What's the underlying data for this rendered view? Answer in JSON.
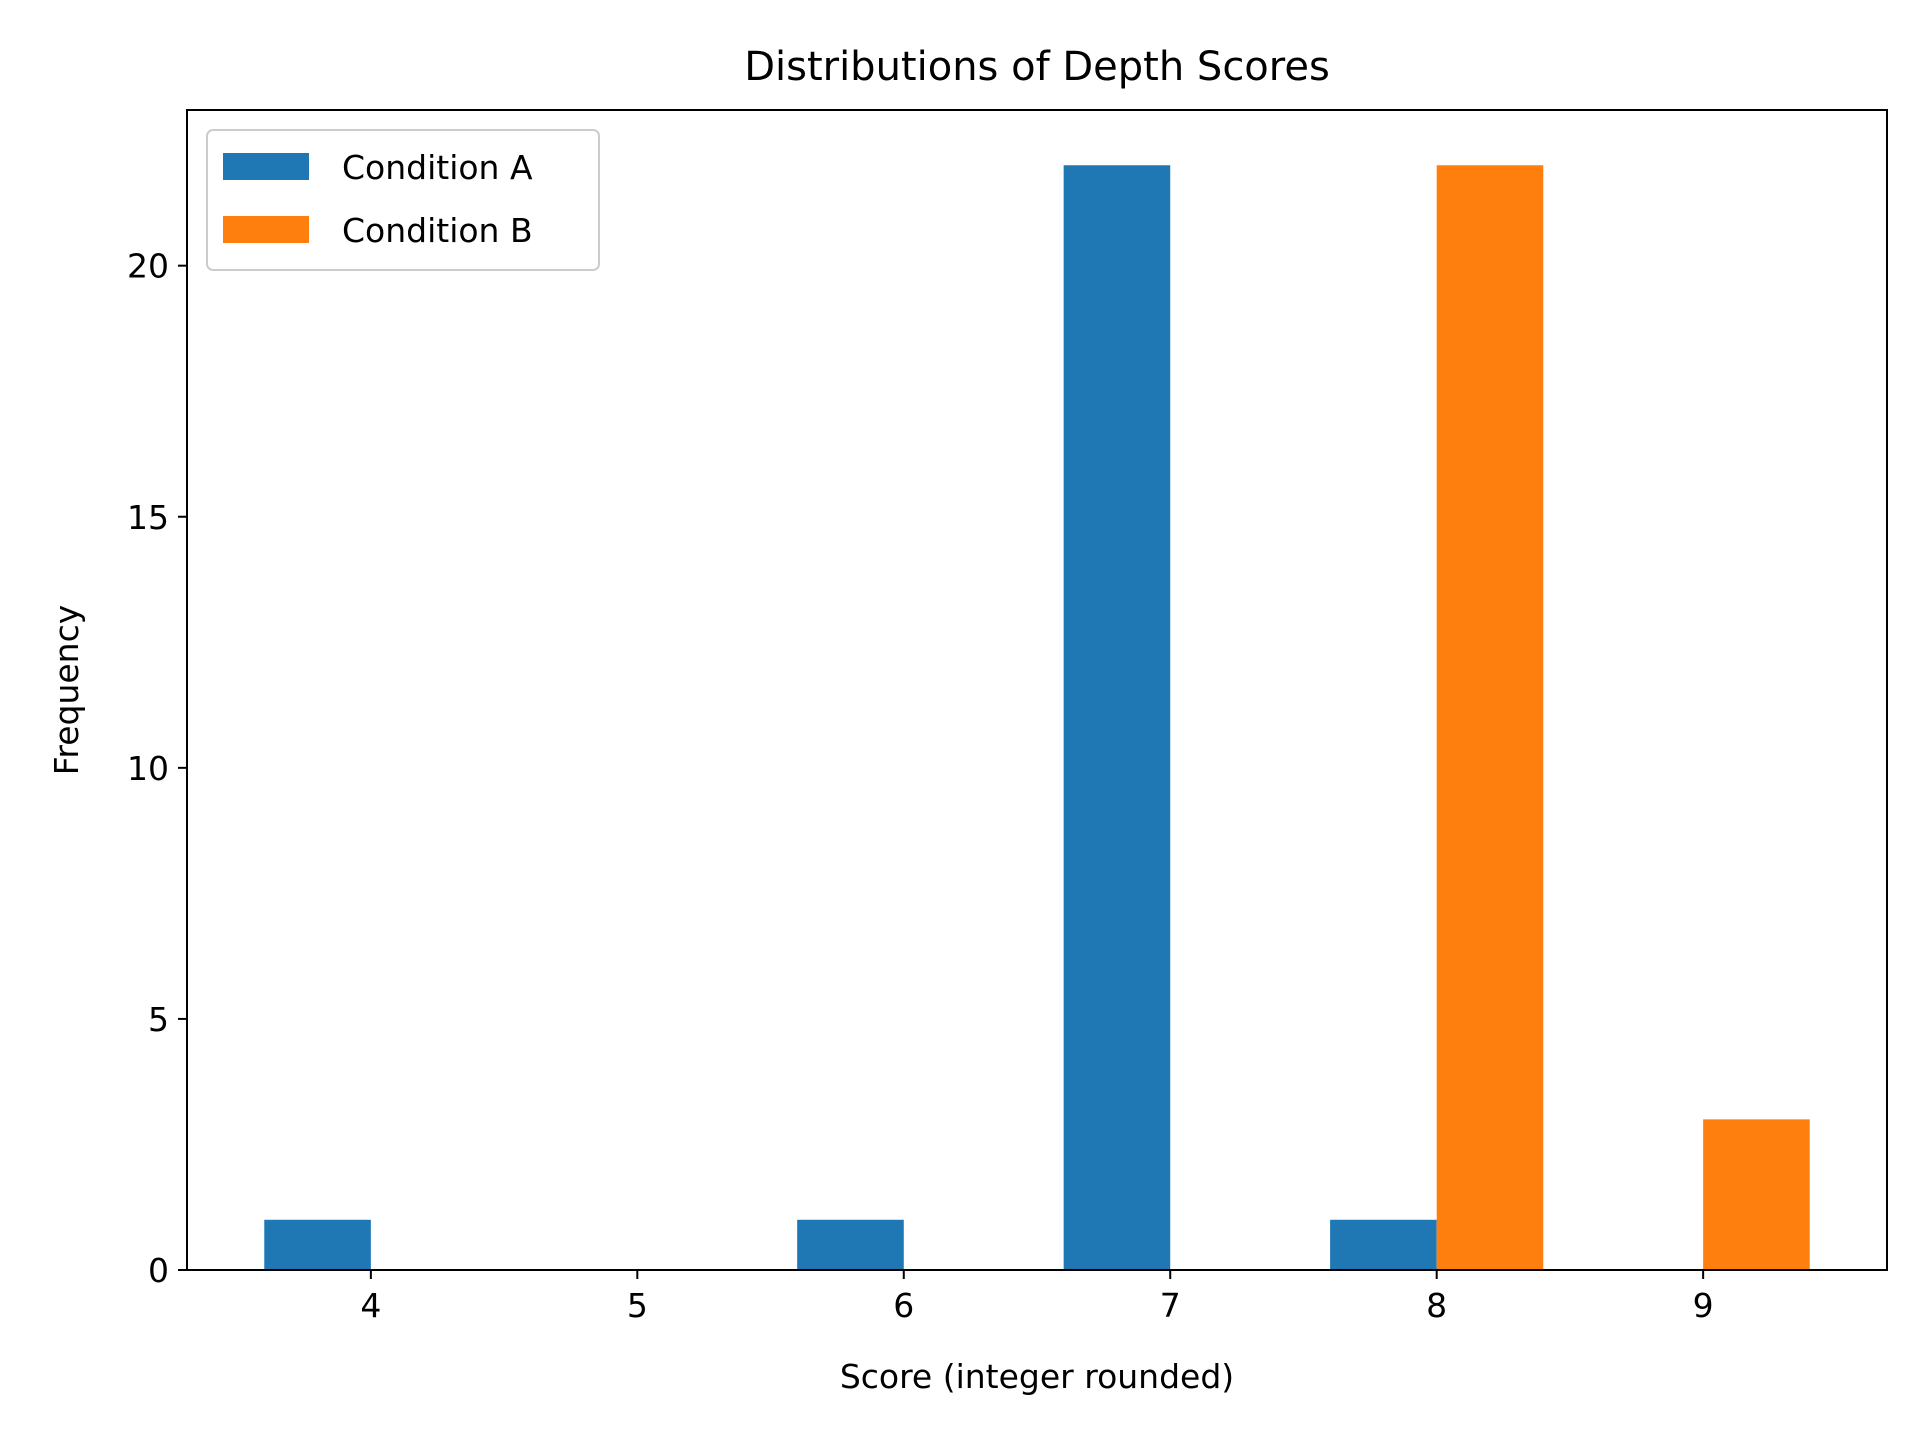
{
  "chart_data": {
    "type": "bar",
    "title": "Distributions of Depth Scores",
    "xlabel": "Score (integer rounded)",
    "ylabel": "Frequency",
    "x_ticks": [
      4,
      5,
      6,
      7,
      8,
      9
    ],
    "y_ticks": [
      0,
      5,
      10,
      15,
      20
    ],
    "xlim": [
      3.31,
      9.69
    ],
    "ylim": [
      0,
      23.1
    ],
    "grid": false,
    "legend_position": "upper-left",
    "series": [
      {
        "name": "Condition A",
        "color": "#1f77b4",
        "points": [
          {
            "x": 4,
            "y": 1
          },
          {
            "x": 6,
            "y": 1
          },
          {
            "x": 7,
            "y": 22
          },
          {
            "x": 8,
            "y": 1
          }
        ]
      },
      {
        "name": "Condition B",
        "color": "#ff7f0e",
        "points": [
          {
            "x": 8,
            "y": 22
          },
          {
            "x": 9,
            "y": 3
          }
        ]
      }
    ]
  }
}
